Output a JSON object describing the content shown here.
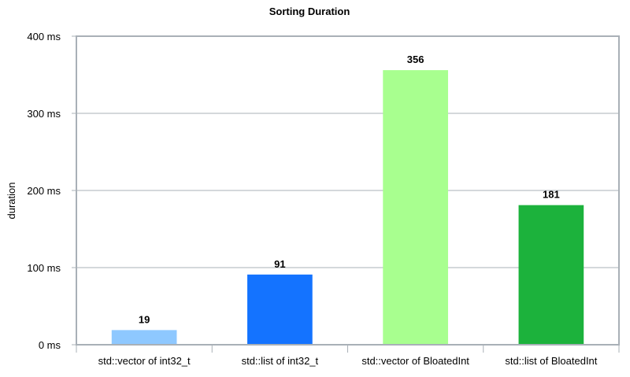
{
  "chart_data": {
    "type": "bar",
    "title": "Sorting Duration",
    "xlabel": "",
    "ylabel": "duration",
    "categories": [
      "std::vector of int32_t",
      "std::list of int32_t",
      "std::vector of BloatedInt",
      "std::list of BloatedInt"
    ],
    "values": [
      19,
      91,
      356,
      181
    ],
    "data_labels": [
      "19",
      "91",
      "356",
      "181"
    ],
    "bar_colors": [
      "#8ec8ff",
      "#1473ff",
      "#a8ff8f",
      "#1cb23c"
    ],
    "ylim": [
      0,
      400
    ],
    "yticks": [
      0,
      100,
      200,
      300,
      400
    ],
    "ytick_labels": [
      "0 ms",
      "100 ms",
      "200 ms",
      "300 ms",
      "400 ms"
    ],
    "grid": true,
    "legend": "none"
  }
}
